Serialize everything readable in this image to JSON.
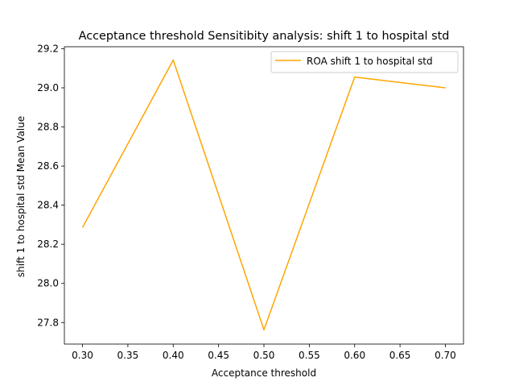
{
  "chart_data": {
    "type": "line",
    "title": "Acceptance threshold Sensitibity analysis: shift 1 to hospital std",
    "xlabel": "Acceptance threshold",
    "ylabel": "shift 1 to hospital std Mean Value",
    "x": [
      0.3,
      0.4,
      0.5,
      0.6,
      0.7
    ],
    "series": [
      {
        "name": "ROA shift 1 to hospital std",
        "values": [
          28.286,
          29.142,
          27.763,
          29.055,
          29.0
        ],
        "color": "#ffa500"
      }
    ],
    "xlim": [
      0.28,
      0.72
    ],
    "ylim": [
      27.69,
      29.21
    ],
    "xticks": [
      "0.30",
      "0.35",
      "0.40",
      "0.45",
      "0.50",
      "0.55",
      "0.60",
      "0.65",
      "0.70"
    ],
    "yticks": [
      "27.8",
      "28.0",
      "28.2",
      "28.4",
      "28.6",
      "28.8",
      "29.0",
      "29.2"
    ],
    "grid": false,
    "legend_position": "top-right"
  }
}
